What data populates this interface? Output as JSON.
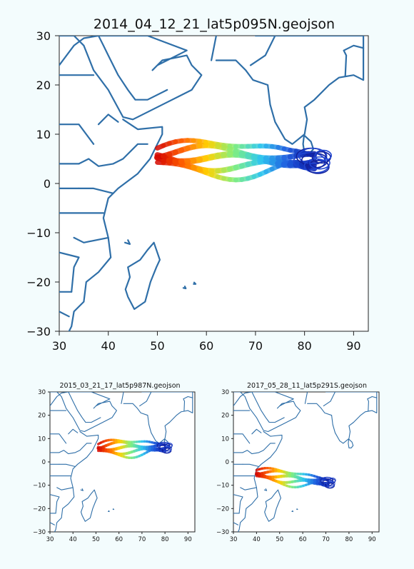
{
  "maps": [
    {
      "title": "2014_04_12_21_lat5p095N.geojson",
      "xticks": [
        "30",
        "40",
        "50",
        "60",
        "70",
        "80",
        "90"
      ],
      "yticks": [
        "30",
        "20",
        "10",
        "0",
        "−10",
        "−20",
        "−30"
      ],
      "xlim": [
        30,
        93
      ],
      "ylim": [
        -30,
        30
      ],
      "plume": {
        "start": [
          50,
          5.5
        ],
        "end": [
          82,
          4.5
        ],
        "spread": 3.5
      }
    },
    {
      "title": "2015_03_21_17_lat5p987N.geojson",
      "xticks": [
        "30",
        "40",
        "50",
        "60",
        "70",
        "80",
        "90"
      ],
      "yticks": [
        "30",
        "20",
        "10",
        "0",
        "−10",
        "−20",
        "−30"
      ],
      "xlim": [
        30,
        93
      ],
      "ylim": [
        -30,
        30
      ],
      "plume": {
        "start": [
          51,
          6
        ],
        "end": [
          80,
          6
        ],
        "spread": 3.5
      }
    },
    {
      "title": "2017_05_28_11_lat5p291S.geojson",
      "xticks": [
        "30",
        "40",
        "50",
        "60",
        "70",
        "80",
        "90"
      ],
      "yticks": [
        "30",
        "20",
        "10",
        "0",
        "−10",
        "−20",
        "−30"
      ],
      "xlim": [
        30,
        93
      ],
      "ylim": [
        -30,
        30
      ],
      "plume": {
        "start": [
          40,
          -5
        ],
        "end": [
          71,
          -9
        ],
        "spread": 3
      }
    }
  ],
  "colors": {
    "coastline": "#2f6fa8",
    "plume_gradient": [
      "#d10000",
      "#ff5a00",
      "#ffd200",
      "#7ff07f",
      "#2fc8f0",
      "#1f5fe0",
      "#0a1aa8"
    ]
  }
}
